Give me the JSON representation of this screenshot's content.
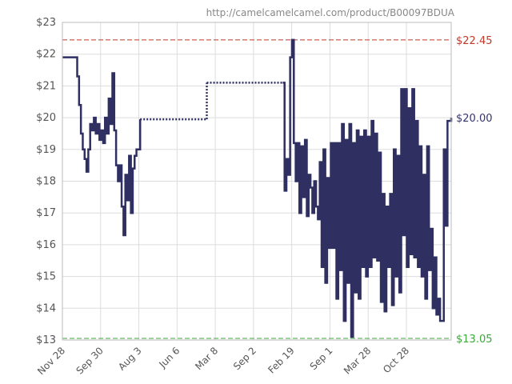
{
  "chart_data": {
    "type": "line",
    "title": "",
    "xlabel": "",
    "ylabel": "",
    "source_url": "http://camelcamelcamel.com/product/B00097BDUA",
    "y_axis": {
      "min": 13,
      "max": 23,
      "ticks": [
        "$13",
        "$14",
        "$15",
        "$16",
        "$17",
        "$18",
        "$19",
        "$20",
        "$21",
        "$22",
        "$23"
      ]
    },
    "x_axis": {
      "tick_labels": [
        "Nov 28",
        "Sep 30",
        "Aug 3",
        "Jun 6",
        "Mar 8",
        "Sep 2",
        "Feb 19",
        "Sep 1",
        "Mar 28",
        "Oct 28"
      ]
    },
    "grid": true,
    "reference_lines": [
      {
        "name": "highest",
        "value": 22.45,
        "label": "$22.45",
        "color": "#c0392b",
        "style": "dashed"
      },
      {
        "name": "current",
        "value": 20.0,
        "label": "$20.00",
        "color": "#35356a",
        "style": "none"
      },
      {
        "name": "lowest",
        "value": 13.05,
        "label": "$13.05",
        "color": "#3aa83a",
        "style": "dashed"
      }
    ],
    "series_color": "#2f2f62",
    "series": [
      {
        "values": [
          [
            0,
            21.9
          ],
          [
            0.6,
            21.9
          ],
          [
            0.8,
            21.3
          ],
          [
            0.9,
            20.4
          ],
          [
            1.0,
            19.5
          ],
          [
            1.1,
            19.0
          ],
          [
            1.2,
            18.7
          ],
          [
            1.3,
            18.3
          ],
          [
            1.4,
            19.0
          ],
          [
            1.5,
            19.8
          ],
          [
            1.6,
            19.6
          ],
          [
            1.7,
            20.0
          ],
          [
            1.8,
            19.5
          ],
          [
            1.9,
            19.8
          ],
          [
            2.0,
            19.3
          ],
          [
            2.1,
            19.6
          ],
          [
            2.2,
            19.2
          ],
          [
            2.3,
            20.0
          ],
          [
            2.4,
            19.5
          ],
          [
            2.5,
            20.6
          ],
          [
            2.6,
            19.8
          ],
          [
            2.7,
            21.4
          ],
          [
            2.8,
            19.6
          ],
          [
            2.9,
            18.5
          ],
          [
            3.0,
            18.0
          ],
          [
            3.1,
            18.5
          ],
          [
            3.2,
            17.2
          ],
          [
            3.3,
            16.3
          ],
          [
            3.4,
            18.2
          ],
          [
            3.5,
            17.4
          ],
          [
            3.6,
            18.8
          ],
          [
            3.7,
            17.0
          ],
          [
            3.8,
            18.4
          ],
          [
            3.9,
            18.8
          ],
          [
            4.0,
            19.0
          ],
          [
            4.2,
            19.95
          ]
        ]
      }
    ],
    "gaps": [
      {
        "from": [
          4.2,
          19.95
        ],
        "to": [
          7.8,
          19.95
        ],
        "style": "dotted"
      },
      {
        "from": [
          7.8,
          19.95
        ],
        "to": [
          7.8,
          21.1
        ],
        "style": "dotted"
      },
      {
        "from": [
          7.8,
          21.1
        ],
        "to": [
          11.9,
          21.1
        ],
        "style": "dotted"
      }
    ],
    "series_after": [
      [
        11.9,
        21.1
      ],
      [
        12.0,
        17.7
      ],
      [
        12.1,
        18.7
      ],
      [
        12.2,
        18.2
      ],
      [
        12.3,
        21.9
      ],
      [
        12.4,
        22.45
      ],
      [
        12.5,
        19.2
      ],
      [
        12.6,
        18.0
      ],
      [
        12.7,
        19.2
      ],
      [
        12.8,
        17.0
      ],
      [
        12.9,
        19.1
      ],
      [
        13.0,
        17.5
      ],
      [
        13.1,
        19.3
      ],
      [
        13.2,
        16.9
      ],
      [
        13.3,
        18.2
      ],
      [
        13.4,
        17.8
      ],
      [
        13.5,
        17.0
      ],
      [
        13.6,
        18.0
      ],
      [
        13.7,
        17.2
      ],
      [
        13.8,
        16.8
      ],
      [
        13.9,
        18.6
      ],
      [
        14.0,
        15.3
      ],
      [
        14.1,
        19.0
      ],
      [
        14.2,
        14.8
      ],
      [
        14.3,
        18.1
      ],
      [
        14.4,
        15.9
      ],
      [
        14.5,
        19.2
      ],
      [
        14.6,
        15.9
      ],
      [
        14.7,
        19.2
      ],
      [
        14.8,
        14.3
      ],
      [
        14.9,
        19.2
      ],
      [
        15.0,
        15.2
      ],
      [
        15.1,
        19.8
      ],
      [
        15.2,
        13.6
      ],
      [
        15.3,
        19.3
      ],
      [
        15.4,
        14.8
      ],
      [
        15.5,
        19.8
      ],
      [
        15.6,
        13.1
      ],
      [
        15.7,
        19.2
      ],
      [
        15.8,
        14.5
      ],
      [
        15.9,
        19.6
      ],
      [
        16.0,
        14.3
      ],
      [
        16.1,
        19.4
      ],
      [
        16.2,
        15.3
      ],
      [
        16.3,
        19.6
      ],
      [
        16.4,
        15.0
      ],
      [
        16.5,
        19.4
      ],
      [
        16.6,
        15.3
      ],
      [
        16.7,
        19.9
      ],
      [
        16.8,
        15.6
      ],
      [
        16.9,
        19.5
      ],
      [
        17.0,
        15.5
      ],
      [
        17.1,
        18.9
      ],
      [
        17.2,
        14.2
      ],
      [
        17.3,
        17.6
      ],
      [
        17.4,
        13.9
      ],
      [
        17.5,
        17.2
      ],
      [
        17.6,
        15.3
      ],
      [
        17.7,
        17.6
      ],
      [
        17.8,
        14.1
      ],
      [
        17.9,
        19.0
      ],
      [
        18.0,
        15.0
      ],
      [
        18.1,
        18.8
      ],
      [
        18.2,
        14.5
      ],
      [
        18.3,
        20.9
      ],
      [
        18.4,
        16.3
      ],
      [
        18.5,
        20.9
      ],
      [
        18.6,
        15.3
      ],
      [
        18.7,
        20.3
      ],
      [
        18.8,
        15.7
      ],
      [
        18.9,
        20.9
      ],
      [
        19.0,
        15.6
      ],
      [
        19.1,
        19.9
      ],
      [
        19.2,
        15.3
      ],
      [
        19.3,
        19.1
      ],
      [
        19.4,
        15.0
      ],
      [
        19.5,
        18.2
      ],
      [
        19.6,
        14.3
      ],
      [
        19.7,
        19.1
      ],
      [
        19.8,
        15.2
      ],
      [
        19.9,
        16.5
      ],
      [
        20.0,
        14.0
      ],
      [
        20.1,
        15.6
      ],
      [
        20.2,
        13.8
      ],
      [
        20.3,
        14.3
      ],
      [
        20.4,
        13.6
      ],
      [
        20.5,
        13.6
      ],
      [
        20.6,
        19.0
      ],
      [
        20.7,
        16.6
      ],
      [
        20.8,
        19.9
      ],
      [
        21.0,
        20.0
      ]
    ]
  }
}
